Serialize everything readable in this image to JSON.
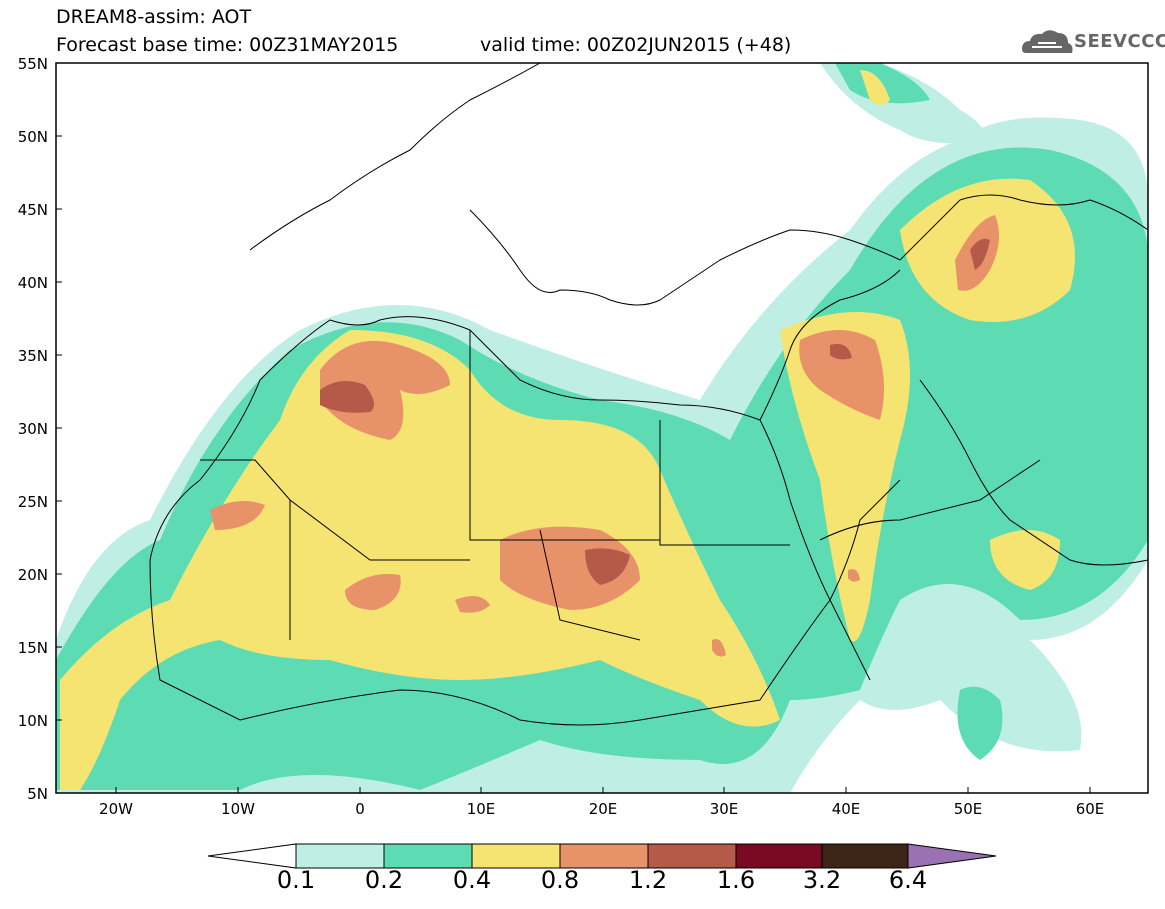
{
  "header": {
    "line1": "DREAM8-assim: AOT",
    "base_time": "Forecast base time: 00Z31MAY2015",
    "valid_time": "valid time: 00Z02JUN2015 (+48)"
  },
  "logo": {
    "text": "SEEVCCC",
    "icon": "cloud-icon"
  },
  "axes": {
    "lat_labels": [
      "55N",
      "50N",
      "45N",
      "40N",
      "35N",
      "30N",
      "25N",
      "20N",
      "15N",
      "10N",
      "5N"
    ],
    "lon_labels": [
      "20W",
      "10W",
      "0",
      "10E",
      "20E",
      "30E",
      "40E",
      "50E",
      "60E"
    ]
  },
  "colorbar": {
    "labels": [
      "0.1",
      "0.2",
      "0.4",
      "0.8",
      "1.2",
      "1.6",
      "3.2",
      "6.4"
    ],
    "colors": [
      "#ffffff",
      "#bfefe4",
      "#5ddcb4",
      "#f5e472",
      "#e8926a",
      "#b55a49",
      "#7a0a24",
      "#3c2416",
      "#9a72b4"
    ]
  },
  "colors": {
    "c1": "#bfefe4",
    "c2": "#5ddcb4",
    "c3": "#f5e472",
    "c4": "#e8926a",
    "c5": "#b55a49",
    "c6": "#7a0a24"
  }
}
